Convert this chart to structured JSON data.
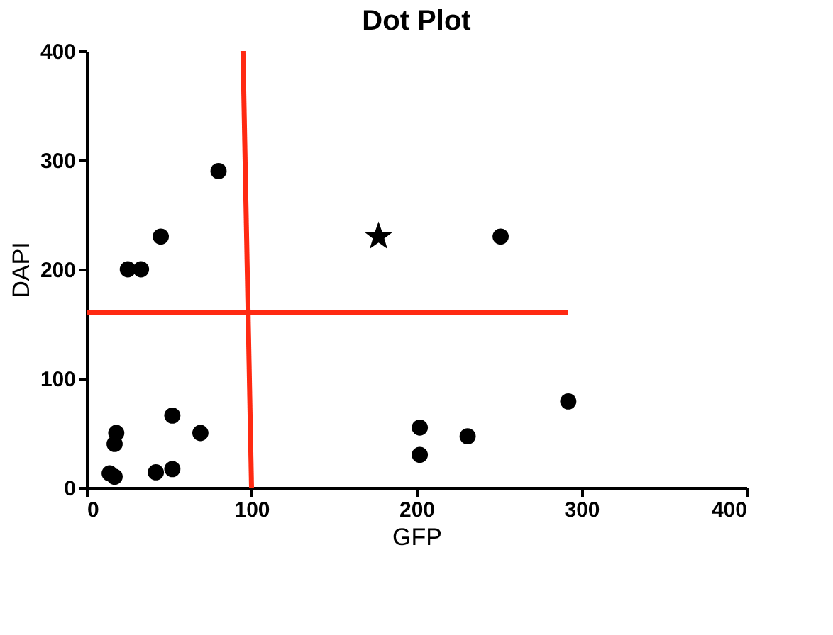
{
  "chart_data": {
    "type": "scatter",
    "title": "Dot Plot",
    "xlabel": "GFP",
    "ylabel": "DAPI",
    "xlim": [
      0,
      400
    ],
    "ylim": [
      0,
      400
    ],
    "xticks": [
      0,
      100,
      200,
      300,
      400
    ],
    "yticks": [
      0,
      100,
      200,
      300,
      400
    ],
    "grid": false,
    "series": [
      {
        "marker": "circle",
        "color": "#000000",
        "x": [
          80,
          45,
          25,
          33,
          18,
          17,
          14,
          17,
          42,
          52,
          52,
          69,
          202,
          202,
          231,
          251,
          292
        ],
        "values": [
          290,
          230,
          200,
          200,
          50,
          40,
          13,
          10,
          14,
          17,
          66,
          50,
          55,
          30,
          47,
          230,
          79
        ]
      },
      {
        "marker": "star",
        "color": "#000000",
        "x": [
          177
        ],
        "values": [
          230
        ]
      },
      {
        "type": "line",
        "color": "#ff2a12",
        "x": [
          94.8,
          100
        ],
        "values": [
          400,
          0
        ]
      },
      {
        "type": "line",
        "color": "#ff2a12",
        "x": [
          0,
          292
        ],
        "values": [
          160,
          160
        ]
      }
    ]
  }
}
